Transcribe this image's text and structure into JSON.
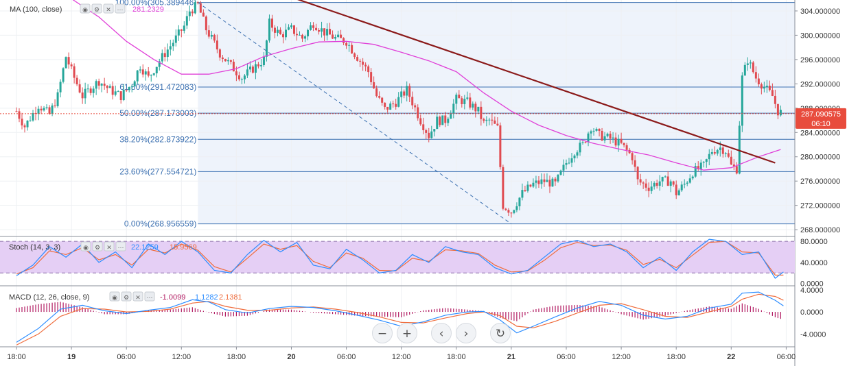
{
  "chart_data": {
    "type": "candlestick",
    "price_axis": {
      "ticks": [
        "304.000000",
        "300.000000",
        "296.000000",
        "292.000000",
        "288.000000",
        "284.000000",
        "280.000000",
        "276.000000",
        "272.000000",
        "268.000000"
      ],
      "tick_values": [
        304,
        300,
        296,
        292,
        288,
        284,
        280,
        276,
        272,
        268
      ],
      "ylim": [
        267,
        305.8
      ]
    },
    "last_price": {
      "label": "287.090575",
      "value": 287.09,
      "countdown": "06:10",
      "color": "#e84c3d"
    },
    "time_axis": {
      "labels": [
        "18:00",
        "19",
        "06:00",
        "12:00",
        "18:00",
        "20",
        "06:00",
        "12:00",
        "18:00",
        "21",
        "06:00",
        "12:00",
        "18:00",
        "22",
        "06:00"
      ],
      "positions": [
        0,
        1,
        2,
        3,
        4,
        5,
        6,
        7,
        8,
        9,
        10,
        11,
        12,
        13,
        14
      ]
    },
    "fibonacci": {
      "levels": [
        {
          "ratio": 1.0,
          "price": 305.389446,
          "label": "100.00%(305.389446)"
        },
        {
          "ratio": 0.618,
          "price": 291.472083,
          "label": "61.80%(291.472083)"
        },
        {
          "ratio": 0.5,
          "price": 287.173003,
          "label": "50.00%(287.173003)"
        },
        {
          "ratio": 0.382,
          "price": 282.873922,
          "label": "38.20%(282.873922)"
        },
        {
          "ratio": 0.236,
          "price": 277.554721,
          "label": "23.60%(277.554721)"
        },
        {
          "ratio": 0.0,
          "price": 268.956559,
          "label": "0.00%(268.956559)"
        }
      ],
      "line_color": "#3a6fb0",
      "zone_color": "#eef3fb"
    },
    "trendline": {
      "from": {
        "t": 4.6,
        "price": 307.5
      },
      "to": {
        "t": 13.8,
        "price": 279.0
      },
      "color": "#8b1a1a"
    },
    "fib_anchor_line": {
      "from": {
        "t": 3.3,
        "price": 305.39
      },
      "to": {
        "t": 9.0,
        "price": 268.96
      },
      "color": "#3a6fb0"
    },
    "ma": {
      "title": "MA (100, close)",
      "value": "281.2329",
      "color": "#e040d8",
      "points": [
        [
          0,
          312
        ],
        [
          0.5,
          309
        ],
        [
          1,
          306
        ],
        [
          1.5,
          303
        ],
        [
          2,
          299
        ],
        [
          2.5,
          296
        ],
        [
          3,
          293.6
        ],
        [
          3.5,
          293.6
        ],
        [
          4,
          294.5
        ],
        [
          4.5,
          296.5
        ],
        [
          5,
          297.8
        ],
        [
          5.5,
          298.9
        ],
        [
          6,
          299
        ],
        [
          6.5,
          298.5
        ],
        [
          7,
          297.2
        ],
        [
          7.5,
          295.8
        ],
        [
          8,
          294
        ],
        [
          8.5,
          290.5
        ],
        [
          9,
          287.5
        ],
        [
          9.5,
          285.2
        ],
        [
          10,
          283.5
        ],
        [
          10.5,
          282.2
        ],
        [
          11,
          281.2
        ],
        [
          11.5,
          280.3
        ],
        [
          12,
          279
        ],
        [
          12.5,
          277.8
        ],
        [
          13,
          278.2
        ],
        [
          13.5,
          280
        ],
        [
          13.9,
          281.2
        ]
      ]
    },
    "candles": {
      "up_color": "#26a69a",
      "down_color": "#e04a50",
      "path": [
        [
          0,
          287.5
        ],
        [
          0.15,
          285
        ],
        [
          0.4,
          288.5
        ],
        [
          0.6,
          287
        ],
        [
          0.75,
          290
        ],
        [
          0.9,
          296.5
        ],
        [
          1.05,
          293
        ],
        [
          1.2,
          290
        ],
        [
          1.5,
          292.5
        ],
        [
          1.7,
          291
        ],
        [
          1.9,
          290
        ],
        [
          2.1,
          292
        ],
        [
          2.25,
          295
        ],
        [
          2.4,
          293
        ],
        [
          2.6,
          295.8
        ],
        [
          2.9,
          299.5
        ],
        [
          3.05,
          301.5
        ],
        [
          3.15,
          304
        ],
        [
          3.3,
          305
        ],
        [
          3.45,
          301
        ],
        [
          3.7,
          297
        ],
        [
          3.9,
          295
        ],
        [
          4.1,
          293
        ],
        [
          4.3,
          294.5
        ],
        [
          4.5,
          296
        ],
        [
          4.6,
          302
        ],
        [
          4.8,
          300
        ],
        [
          5.0,
          301
        ],
        [
          5.2,
          299.5
        ],
        [
          5.4,
          302
        ],
        [
          5.6,
          300.5
        ],
        [
          5.8,
          299.5
        ],
        [
          6.0,
          299
        ],
        [
          6.15,
          297
        ],
        [
          6.4,
          294
        ],
        [
          6.55,
          290
        ],
        [
          6.7,
          287.8
        ],
        [
          6.9,
          289
        ],
        [
          7.1,
          291
        ],
        [
          7.2,
          289
        ],
        [
          7.35,
          286
        ],
        [
          7.5,
          283.5
        ],
        [
          7.65,
          286
        ],
        [
          7.8,
          286
        ],
        [
          8.0,
          289.5
        ],
        [
          8.2,
          289
        ],
        [
          8.4,
          287.5
        ],
        [
          8.5,
          285.5
        ],
        [
          8.6,
          286
        ],
        [
          8.75,
          284.7
        ],
        [
          8.85,
          272
        ],
        [
          9.0,
          271
        ],
        [
          9.2,
          274
        ],
        [
          9.4,
          275.5
        ],
        [
          9.6,
          276
        ],
        [
          9.8,
          275.5
        ],
        [
          10.0,
          279
        ],
        [
          10.15,
          281
        ],
        [
          10.3,
          282
        ],
        [
          10.45,
          285
        ],
        [
          10.6,
          283.5
        ],
        [
          10.8,
          283
        ],
        [
          11.0,
          282
        ],
        [
          11.2,
          280
        ],
        [
          11.3,
          276
        ],
        [
          11.5,
          275
        ],
        [
          11.7,
          276
        ],
        [
          11.9,
          276
        ],
        [
          12.0,
          274
        ],
        [
          12.15,
          275.5
        ],
        [
          12.3,
          277.5
        ],
        [
          12.5,
          278.5
        ],
        [
          12.65,
          281
        ],
        [
          12.8,
          281.5
        ],
        [
          12.9,
          281
        ],
        [
          13.0,
          278.5
        ],
        [
          13.1,
          278
        ],
        [
          13.2,
          293
        ],
        [
          13.3,
          296
        ],
        [
          13.45,
          293
        ],
        [
          13.6,
          291.5
        ],
        [
          13.75,
          290
        ],
        [
          13.85,
          287.5
        ],
        [
          13.95,
          287.1
        ]
      ]
    },
    "stoch": {
      "title": "Stoch (14, 3, 3)",
      "k_value": "22.1259",
      "d_value": "15.9569",
      "k_color": "#2b8cff",
      "d_color": "#ef6c3c",
      "band_color": "#e5cff5",
      "ticks": [
        "80.0000",
        "40.0000",
        "0.0000"
      ],
      "tick_values": [
        80,
        40,
        0
      ],
      "levels": [
        80,
        20
      ],
      "ylim": [
        -3,
        88
      ],
      "k_points": [
        [
          0,
          15
        ],
        [
          0.3,
          35
        ],
        [
          0.6,
          70
        ],
        [
          0.9,
          50
        ],
        [
          1.2,
          75
        ],
        [
          1.5,
          40
        ],
        [
          1.8,
          60
        ],
        [
          2.1,
          30
        ],
        [
          2.4,
          75
        ],
        [
          2.7,
          55
        ],
        [
          3.0,
          80
        ],
        [
          3.3,
          60
        ],
        [
          3.6,
          25
        ],
        [
          3.9,
          20
        ],
        [
          4.2,
          55
        ],
        [
          4.5,
          82
        ],
        [
          4.8,
          60
        ],
        [
          5.1,
          78
        ],
        [
          5.4,
          35
        ],
        [
          5.7,
          28
        ],
        [
          6.0,
          65
        ],
        [
          6.3,
          45
        ],
        [
          6.6,
          20
        ],
        [
          6.9,
          25
        ],
        [
          7.2,
          55
        ],
        [
          7.5,
          40
        ],
        [
          7.8,
          70
        ],
        [
          8.1,
          60
        ],
        [
          8.4,
          55
        ],
        [
          8.7,
          30
        ],
        [
          9.0,
          18
        ],
        [
          9.3,
          25
        ],
        [
          9.6,
          50
        ],
        [
          9.9,
          75
        ],
        [
          10.2,
          82
        ],
        [
          10.5,
          70
        ],
        [
          10.8,
          75
        ],
        [
          11.1,
          60
        ],
        [
          11.4,
          30
        ],
        [
          11.7,
          50
        ],
        [
          12.0,
          25
        ],
        [
          12.3,
          60
        ],
        [
          12.6,
          84
        ],
        [
          12.9,
          80
        ],
        [
          13.2,
          55
        ],
        [
          13.5,
          60
        ],
        [
          13.8,
          10
        ],
        [
          13.95,
          22
        ]
      ],
      "d_points": [
        [
          0,
          18
        ],
        [
          0.3,
          30
        ],
        [
          0.6,
          62
        ],
        [
          0.9,
          55
        ],
        [
          1.2,
          68
        ],
        [
          1.5,
          45
        ],
        [
          1.8,
          55
        ],
        [
          2.1,
          35
        ],
        [
          2.4,
          65
        ],
        [
          2.7,
          58
        ],
        [
          3.0,
          75
        ],
        [
          3.3,
          63
        ],
        [
          3.6,
          32
        ],
        [
          3.9,
          22
        ],
        [
          4.2,
          48
        ],
        [
          4.5,
          75
        ],
        [
          4.8,
          65
        ],
        [
          5.1,
          72
        ],
        [
          5.4,
          42
        ],
        [
          5.7,
          30
        ],
        [
          6.0,
          58
        ],
        [
          6.3,
          48
        ],
        [
          6.6,
          25
        ],
        [
          6.9,
          24
        ],
        [
          7.2,
          48
        ],
        [
          7.5,
          42
        ],
        [
          7.8,
          64
        ],
        [
          8.1,
          62
        ],
        [
          8.4,
          57
        ],
        [
          8.7,
          35
        ],
        [
          9.0,
          22
        ],
        [
          9.3,
          24
        ],
        [
          9.6,
          44
        ],
        [
          9.9,
          68
        ],
        [
          10.2,
          78
        ],
        [
          10.5,
          72
        ],
        [
          10.8,
          73
        ],
        [
          11.1,
          63
        ],
        [
          11.4,
          36
        ],
        [
          11.7,
          46
        ],
        [
          12.0,
          30
        ],
        [
          12.3,
          54
        ],
        [
          12.6,
          78
        ],
        [
          12.9,
          80
        ],
        [
          13.2,
          60
        ],
        [
          13.5,
          58
        ],
        [
          13.8,
          16
        ],
        [
          13.95,
          16
        ]
      ]
    },
    "macd": {
      "title": "MACD (12, 26, close, 9)",
      "hist_value": "-1.0099",
      "macd_value": "1.1282",
      "signal_value": "2.1381",
      "hist_color": "#b0175f",
      "macd_color": "#2b8cff",
      "signal_color": "#ef6c3c",
      "ticks": [
        "4.0000",
        "0.0000",
        "-4.0000"
      ],
      "tick_values": [
        4,
        0,
        -4
      ],
      "ylim": [
        -6.2,
        4.6
      ],
      "macd_points": [
        [
          0,
          -5.5
        ],
        [
          0.4,
          -3
        ],
        [
          0.8,
          0.5
        ],
        [
          1.2,
          1.2
        ],
        [
          1.6,
          0.2
        ],
        [
          2.0,
          -0.3
        ],
        [
          2.4,
          0.3
        ],
        [
          2.8,
          0.8
        ],
        [
          3.2,
          2.2
        ],
        [
          3.5,
          1.8
        ],
        [
          3.8,
          0.4
        ],
        [
          4.2,
          -0.2
        ],
        [
          4.6,
          0.6
        ],
        [
          5.0,
          1.0
        ],
        [
          5.4,
          0.8
        ],
        [
          5.8,
          0.2
        ],
        [
          6.2,
          -0.6
        ],
        [
          6.6,
          -1.5
        ],
        [
          7.0,
          -2.6
        ],
        [
          7.4,
          -1.8
        ],
        [
          7.8,
          -0.6
        ],
        [
          8.2,
          0
        ],
        [
          8.5,
          0.1
        ],
        [
          8.8,
          -1.5
        ],
        [
          9.1,
          -3.8
        ],
        [
          9.4,
          -2.6
        ],
        [
          9.8,
          -0.9
        ],
        [
          10.2,
          0.7
        ],
        [
          10.6,
          1.9
        ],
        [
          11.0,
          1.2
        ],
        [
          11.4,
          -0.6
        ],
        [
          11.8,
          -1.3
        ],
        [
          12.2,
          -0.8
        ],
        [
          12.6,
          0.7
        ],
        [
          13.0,
          1.4
        ],
        [
          13.2,
          3.4
        ],
        [
          13.5,
          3.6
        ],
        [
          13.8,
          2.1
        ],
        [
          13.95,
          1.1
        ]
      ],
      "signal_points": [
        [
          0,
          -6
        ],
        [
          0.4,
          -4
        ],
        [
          0.8,
          -0.8
        ],
        [
          1.2,
          0.6
        ],
        [
          1.6,
          0.5
        ],
        [
          2.0,
          0
        ],
        [
          2.4,
          0.1
        ],
        [
          2.8,
          0.5
        ],
        [
          3.2,
          1.6
        ],
        [
          3.5,
          1.9
        ],
        [
          3.8,
          1.0
        ],
        [
          4.2,
          0.3
        ],
        [
          4.6,
          0.3
        ],
        [
          5.0,
          0.7
        ],
        [
          5.4,
          0.9
        ],
        [
          5.8,
          0.5
        ],
        [
          6.2,
          -0.1
        ],
        [
          6.6,
          -0.9
        ],
        [
          7.0,
          -1.9
        ],
        [
          7.4,
          -2.0
        ],
        [
          7.8,
          -1.1
        ],
        [
          8.2,
          -0.3
        ],
        [
          8.5,
          0.0
        ],
        [
          8.8,
          -0.7
        ],
        [
          9.1,
          -2.6
        ],
        [
          9.4,
          -2.9
        ],
        [
          9.8,
          -1.7
        ],
        [
          10.2,
          -0.2
        ],
        [
          10.6,
          1.2
        ],
        [
          11.0,
          1.5
        ],
        [
          11.4,
          0.4
        ],
        [
          11.8,
          -0.8
        ],
        [
          12.2,
          -1.0
        ],
        [
          12.6,
          0.0
        ],
        [
          13.0,
          1.0
        ],
        [
          13.2,
          2.3
        ],
        [
          13.5,
          3.2
        ],
        [
          13.8,
          2.8
        ],
        [
          13.95,
          2.1
        ]
      ]
    }
  },
  "toolbar": {
    "zoom_out": "−",
    "zoom_in": "+",
    "scroll_left": "‹",
    "scroll_right": "›",
    "reset": "↻",
    "icons": [
      "zoom-out-icon",
      "zoom-in-icon",
      "scroll-left-icon",
      "scroll-right-icon",
      "reset-icon"
    ]
  },
  "indicator_controls": {
    "glyphs": [
      "◉",
      "⚙",
      "✕",
      "⋯"
    ]
  }
}
